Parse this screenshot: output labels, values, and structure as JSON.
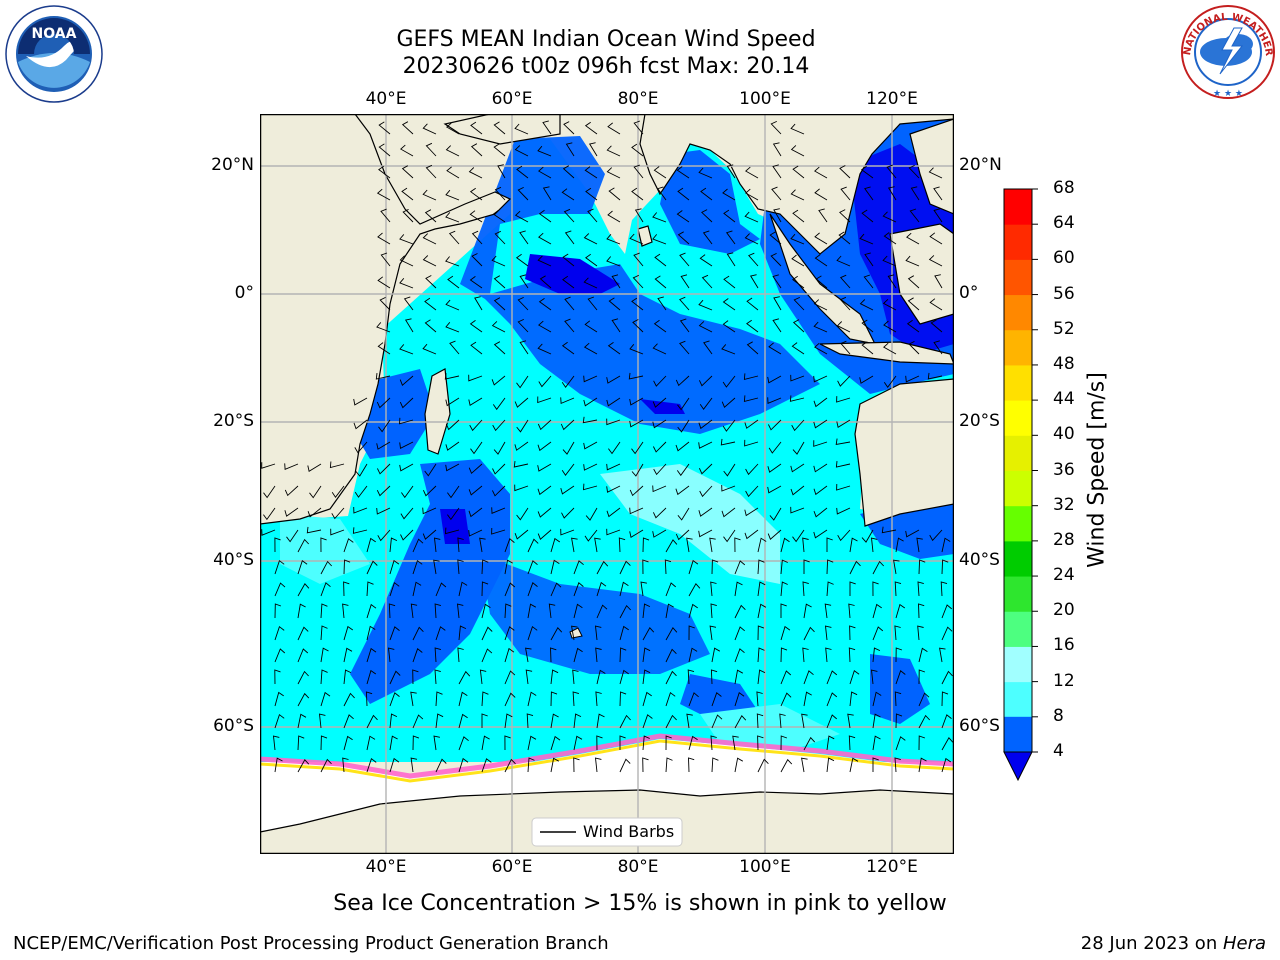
{
  "header": {
    "title_line1": "GEFS MEAN Indian Ocean Wind Speed",
    "title_line2": "20230626 t00z 096h fcst   Max: 20.14"
  },
  "logos": {
    "left": {
      "icon": "noaa-logo-icon",
      "text": "NOAA"
    },
    "right": {
      "icon": "national-weather-service-logo-icon",
      "text": "NATIONAL WEATHER SERVICE"
    }
  },
  "map": {
    "lon_labels": [
      "40°E",
      "60°E",
      "80°E",
      "100°E",
      "120°E"
    ],
    "lat_labels": [
      "20°N",
      "0°",
      "20°S",
      "40°S",
      "60°S"
    ],
    "lon_range": [
      20,
      130
    ],
    "lat_range": [
      -75,
      28
    ],
    "colors": {
      "land": "#efeddb",
      "ice": "#ffffff",
      "grid": "#b4b4b4"
    },
    "legend_label": "Wind Barbs"
  },
  "colorbar": {
    "label": "Wind Speed [m/s]",
    "ticks": [
      "4",
      "8",
      "12",
      "16",
      "20",
      "24",
      "28",
      "32",
      "36",
      "40",
      "44",
      "48",
      "52",
      "56",
      "60",
      "64",
      "68"
    ],
    "colors": [
      "#0063ff",
      "#00ffff",
      "#4dffff",
      "#a1ffff",
      "#4dff80",
      "#2ee62e",
      "#00cc00",
      "#66ff00",
      "#ccff00",
      "#e6f000",
      "#ffff00",
      "#ffe000",
      "#ffb400",
      "#ff8800",
      "#ff5500",
      "#ff2a00",
      "#ff0000"
    ],
    "under_color": "#0000ee"
  },
  "caption": "Sea Ice Concentration > 15% is shown in pink to yellow",
  "footer": {
    "left": "NCEP/EMC/Verification Post Processing Product Generation Branch",
    "right_date": "28 Jun 2023 on ",
    "right_host": "Hera"
  }
}
